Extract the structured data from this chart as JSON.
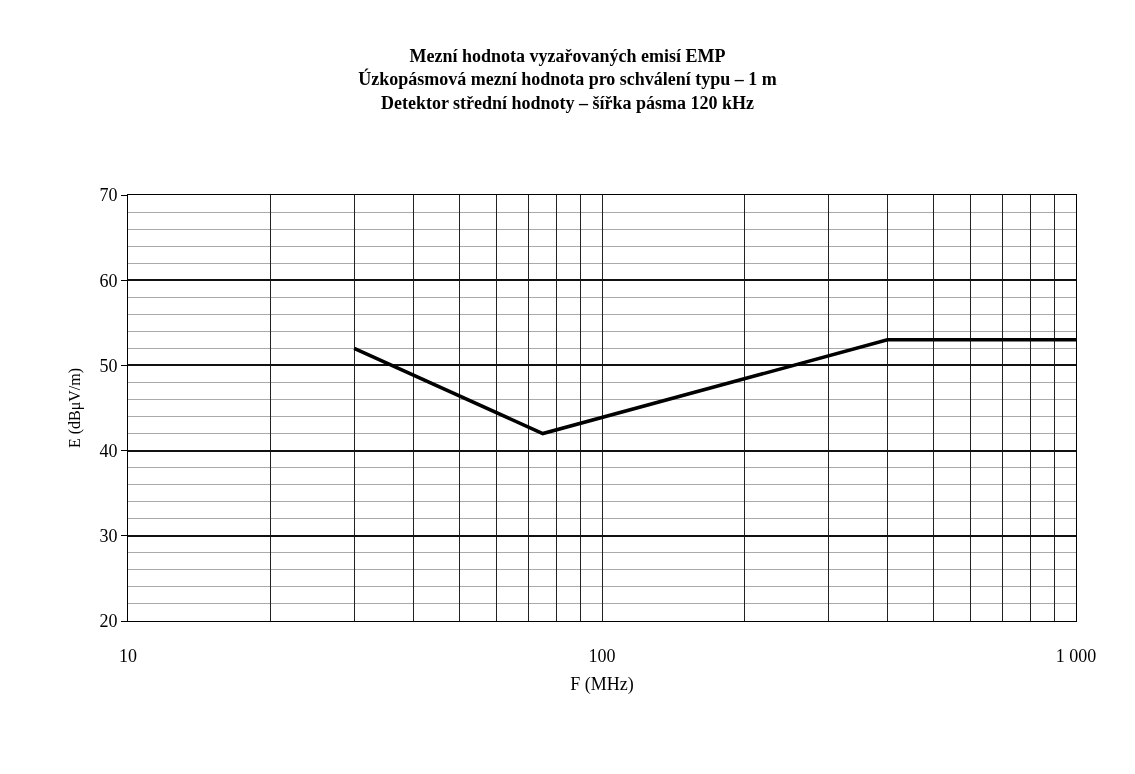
{
  "chart_data": {
    "type": "line",
    "title": "Mezní hodnota vyzařovaných emisí EMP\nÚzkopásmová mezní hodnota pro schválení typu – 1 m\nDetektor střední hodnoty – šířka pásma 120 kHz",
    "xlabel": "F (MHz)",
    "ylabel": "E (dBμV/m)",
    "log": "x",
    "x": [
      30,
      75,
      400,
      1000
    ],
    "series": [
      {
        "color": "#000000",
        "values": [
          52,
          42,
          53,
          53
        ]
      }
    ],
    "xlim": [
      10,
      1000
    ],
    "xticks": [
      10,
      {
        "value": 20,
        "label": null
      },
      {
        "value": 30,
        "label": null
      },
      {
        "value": 40,
        "label": null
      },
      {
        "value": 50,
        "label": null
      },
      {
        "value": 60,
        "label": null
      },
      {
        "value": 70,
        "label": null
      },
      {
        "value": 80,
        "label": null
      },
      {
        "value": 90,
        "label": null
      },
      100,
      {
        "value": 200,
        "label": null
      },
      {
        "value": 300,
        "label": null
      },
      {
        "value": 400,
        "label": null
      },
      {
        "value": 500,
        "label": null
      },
      {
        "value": 600,
        "label": null
      },
      {
        "value": 700,
        "label": null
      },
      {
        "value": 800,
        "label": null
      },
      {
        "value": 900,
        "label": null
      },
      {
        "value": 1000,
        "label": "1 000"
      }
    ],
    "ylim": [
      20,
      70
    ],
    "yticks": [
      20,
      {
        "value": 22,
        "label": null
      },
      {
        "value": 24,
        "label": null
      },
      {
        "value": 26,
        "label": null
      },
      {
        "value": 28,
        "label": null
      },
      30,
      {
        "value": 32,
        "label": null
      },
      {
        "value": 34,
        "label": null
      },
      {
        "value": 36,
        "label": null
      },
      {
        "value": 38,
        "label": null
      },
      40,
      {
        "value": 42,
        "label": null
      },
      {
        "value": 44,
        "label": null
      },
      {
        "value": 46,
        "label": null
      },
      {
        "value": 48,
        "label": null
      },
      50,
      {
        "value": 52,
        "label": null
      },
      {
        "value": 54,
        "label": null
      },
      {
        "value": 56,
        "label": null
      },
      {
        "value": 58,
        "label": null
      },
      60,
      {
        "value": 62,
        "label": null
      },
      {
        "value": 64,
        "label": null
      },
      {
        "value": 66,
        "label": null
      },
      {
        "value": 68,
        "label": null
      },
      70
    ],
    "grid": true,
    "marker": "none",
    "line_style": "solid"
  }
}
